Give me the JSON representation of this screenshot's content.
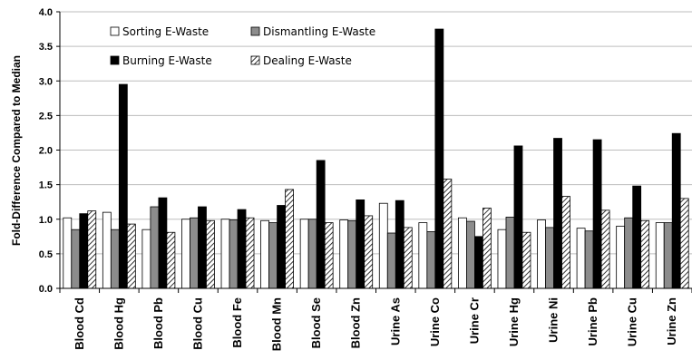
{
  "chart_data": {
    "type": "bar",
    "ylabel": "Fold-Difference Compared to Median",
    "ylim": [
      0,
      4.0
    ],
    "yticks": [
      "0.0",
      "0.5",
      "1.0",
      "1.5",
      "2.0",
      "2.5",
      "3.0",
      "3.5",
      "4.0"
    ],
    "grid": true,
    "legend_position": "top-left-inside",
    "categories": [
      "Blood Cd",
      "Blood Hg",
      "Blood Pb",
      "Blood Cu",
      "Blood Fe",
      "Blood Mn",
      "Blood Se",
      "Blood Zn",
      "Urine As",
      "Urine Co",
      "Urine Cr",
      "Urine Hg",
      "Urine Ni",
      "Urine Pb",
      "Urine Cu",
      "Urine Zn"
    ],
    "series": [
      {
        "name": "Sorting E-Waste",
        "fill": "white",
        "values": [
          1.02,
          1.1,
          0.85,
          1.0,
          1.0,
          0.98,
          1.0,
          0.99,
          1.23,
          0.95,
          1.02,
          0.85,
          0.99,
          0.87,
          0.9,
          0.95
        ]
      },
      {
        "name": "Dismantling E-Waste",
        "fill": "gray",
        "values": [
          0.85,
          0.85,
          1.18,
          1.02,
          0.99,
          0.95,
          1.0,
          0.98,
          0.8,
          0.82,
          0.97,
          1.03,
          0.88,
          0.83,
          1.02,
          0.95
        ]
      },
      {
        "name": "Burning E-Waste",
        "fill": "black",
        "values": [
          1.08,
          2.95,
          1.31,
          1.18,
          1.14,
          1.2,
          1.85,
          1.28,
          1.27,
          3.75,
          0.75,
          2.06,
          2.17,
          2.15,
          1.48,
          2.24
        ]
      },
      {
        "name": "Dealing E-Waste",
        "fill": "hatch",
        "values": [
          1.12,
          0.93,
          0.81,
          0.98,
          1.02,
          1.43,
          0.95,
          1.05,
          0.88,
          1.58,
          1.16,
          0.81,
          1.33,
          1.13,
          0.98,
          1.3
        ]
      }
    ],
    "colors": {
      "white": "#ffffff",
      "gray": "#8c8c8c",
      "black": "#000000",
      "border": "#000000",
      "grid": "#bdbdbd"
    }
  }
}
